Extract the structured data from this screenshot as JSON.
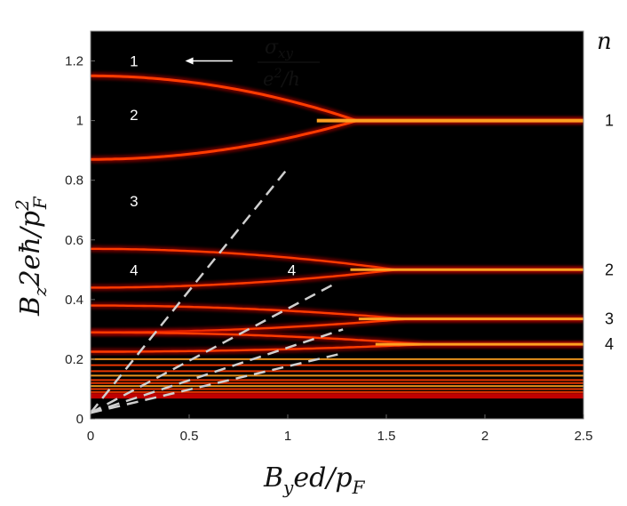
{
  "chart_data": {
    "type": "heatmap",
    "xlabel": {
      "main": "B",
      "sub": "y",
      "rest": "ed/p",
      "sub2": "F"
    },
    "ylabel": {
      "main": "B",
      "sub": "z",
      "rest": "2eħ/p",
      "sup": "2",
      "sub2": "F"
    },
    "xlim": [
      0,
      2.5
    ],
    "ylim": [
      0,
      1.3
    ],
    "x_ticks": [
      "0",
      "0.5",
      "1",
      "1.5",
      "2",
      "2.5"
    ],
    "y_ticks": [
      "0",
      "0.2",
      "0.4",
      "0.6",
      "0.8",
      "1",
      "1.2"
    ],
    "x_tick_values": [
      0,
      0.5,
      1,
      1.5,
      2,
      2.5
    ],
    "y_tick_values": [
      0,
      0.2,
      0.4,
      0.6,
      0.8,
      1,
      1.2
    ],
    "colormap": [
      "#000000",
      "#5a0000",
      "#c00000",
      "#ff3c00",
      "#ffa020",
      "#ffe890"
    ],
    "bands": [
      {
        "n": 1,
        "y_split_top": 1.15,
        "y_split_bottom": 0.87,
        "y_merge": 1.0,
        "x_merge": 1.35
      },
      {
        "n": 2,
        "y_split_top": 0.57,
        "y_split_bottom": 0.44,
        "y_merge": 0.5,
        "x_merge": 1.55
      },
      {
        "n": 3,
        "y_split_top": 0.38,
        "y_split_bottom": 0.29,
        "y_merge": 0.335,
        "x_merge": 1.6
      },
      {
        "n": 4,
        "y_split_top": 0.29,
        "y_split_bottom": 0.225,
        "y_merge": 0.25,
        "x_merge": 1.7
      }
    ],
    "dense_levels_y": [
      0.2,
      0.18,
      0.16,
      0.145,
      0.13,
      0.12,
      0.11,
      0.1,
      0.09,
      0.08
    ],
    "dashed_lines": [
      {
        "x": [
          0,
          1.0
        ],
        "y": [
          0.02,
          0.84
        ]
      },
      {
        "x": [
          0,
          1.23
        ],
        "y": [
          0.02,
          0.45
        ]
      },
      {
        "x": [
          0,
          1.28
        ],
        "y": [
          0.02,
          0.3
        ]
      },
      {
        "x": [
          0,
          1.28
        ],
        "y": [
          0.02,
          0.22
        ]
      }
    ],
    "annotations": [
      {
        "text": "1",
        "x": 0.22,
        "y": 1.2
      },
      {
        "text": "2",
        "x": 0.22,
        "y": 1.02
      },
      {
        "text": "3",
        "x": 0.22,
        "y": 0.73
      },
      {
        "text": "4",
        "x": 0.22,
        "y": 0.5
      },
      {
        "text": "4",
        "x": 1.02,
        "y": 0.5
      }
    ],
    "arrow": {
      "from": [
        0.72,
        1.2
      ],
      "to": [
        0.48,
        1.2
      ]
    },
    "sigma_label": {
      "num_main": "σ",
      "num_sub": "xy",
      "den_main": "e",
      "den_sup": "2",
      "den_rest": "/h"
    },
    "n_header": "n",
    "n_labels": [
      {
        "text": "1",
        "y": 1.0
      },
      {
        "text": "2",
        "y": 0.5
      },
      {
        "text": "3",
        "y": 0.335
      },
      {
        "text": "4",
        "y": 0.25
      }
    ]
  }
}
